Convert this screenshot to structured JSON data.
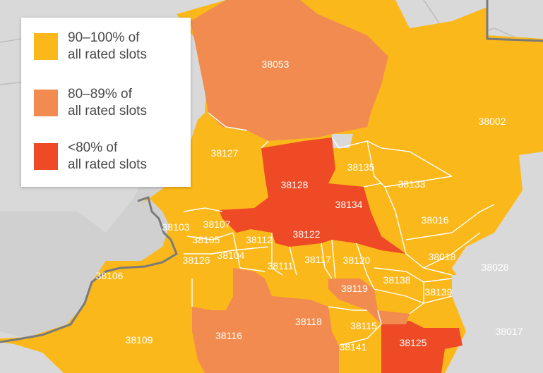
{
  "colors": {
    "band_90_100": "#fbb81a",
    "band_80_89": "#f28b4f",
    "band_below_80": "#ef4a26",
    "background": "#d9d9d9",
    "river": "#9a9a9a"
  },
  "legend": {
    "items": [
      {
        "label": "90–100% of\nall rated slots",
        "color_key": "band_90_100"
      },
      {
        "label": "80–89% of\nall rated slots",
        "color_key": "band_80_89"
      },
      {
        "label": "<80% of\nall rated slots",
        "color_key": "band_below_80"
      }
    ]
  },
  "zip_codes": [
    {
      "zip": "38053",
      "band": "80-89%"
    },
    {
      "zip": "38002",
      "band": "90-100%"
    },
    {
      "zip": "38127",
      "band": "90-100%"
    },
    {
      "zip": "38128",
      "band": "<80%"
    },
    {
      "zip": "38135",
      "band": "90-100%"
    },
    {
      "zip": "38133",
      "band": "90-100%"
    },
    {
      "zip": "38134",
      "band": "<80%"
    },
    {
      "zip": "38016",
      "band": "90-100%"
    },
    {
      "zip": "38103",
      "band": "90-100%"
    },
    {
      "zip": "38107",
      "band": "90-100%"
    },
    {
      "zip": "38105",
      "band": "90-100%"
    },
    {
      "zip": "38112",
      "band": "90-100%"
    },
    {
      "zip": "38122",
      "band": "<80%"
    },
    {
      "zip": "38126",
      "band": "90-100%"
    },
    {
      "zip": "38104",
      "band": "90-100%"
    },
    {
      "zip": "38111",
      "band": "90-100%"
    },
    {
      "zip": "38117",
      "band": "90-100%"
    },
    {
      "zip": "38120",
      "band": "90-100%"
    },
    {
      "zip": "38018",
      "band": "90-100%"
    },
    {
      "zip": "38028",
      "band": "not rated"
    },
    {
      "zip": "38106",
      "band": "90-100%"
    },
    {
      "zip": "38119",
      "band": "80-89%"
    },
    {
      "zip": "38138",
      "band": "90-100%"
    },
    {
      "zip": "38139",
      "band": "90-100%"
    },
    {
      "zip": "38118",
      "band": "80-89%"
    },
    {
      "zip": "38115",
      "band": "90-100%"
    },
    {
      "zip": "38017",
      "band": "90-100%"
    },
    {
      "zip": "38109",
      "band": "90-100%"
    },
    {
      "zip": "38116",
      "band": "80-89%"
    },
    {
      "zip": "38141",
      "band": "90-100%"
    },
    {
      "zip": "38125",
      "band": "<80%"
    }
  ]
}
